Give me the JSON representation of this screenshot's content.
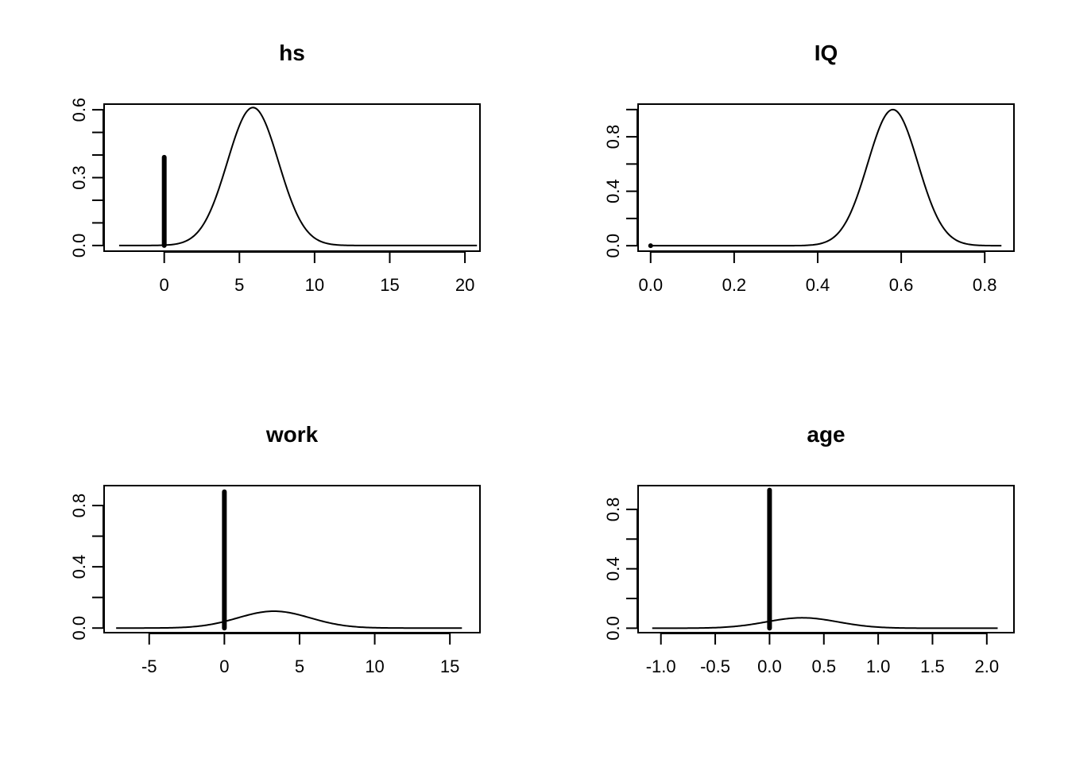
{
  "chart_data": [
    {
      "type": "line",
      "title": "hs",
      "xlabel": "",
      "ylabel": "",
      "xlim": [
        -4,
        21
      ],
      "ylim": [
        -0.025,
        0.625
      ],
      "xticks": [
        0,
        5,
        10,
        15,
        20
      ],
      "xtick_labels": [
        "0",
        "5",
        "10",
        "15",
        "20"
      ],
      "yticks": [
        0.0,
        0.3,
        0.6
      ],
      "ytick_labels": [
        "0.0",
        "0.3",
        "0.6"
      ],
      "yminor_ticks": [
        0.1,
        0.2,
        0.4,
        0.5
      ],
      "curve": {
        "kind": "normal_density",
        "mean": 5.9,
        "sd": 1.7,
        "peak": 0.61,
        "x_range": [
          -3,
          20.8
        ]
      },
      "spike": {
        "x": 0,
        "height": 0.39
      }
    },
    {
      "type": "line",
      "title": "IQ",
      "xlabel": "",
      "ylabel": "",
      "xlim": [
        -0.03,
        0.87
      ],
      "ylim": [
        -0.04,
        1.04
      ],
      "xticks": [
        0.0,
        0.2,
        0.4,
        0.6,
        0.8
      ],
      "xtick_labels": [
        "0.0",
        "0.2",
        "0.4",
        "0.6",
        "0.8"
      ],
      "yticks": [
        0.0,
        0.4,
        0.8
      ],
      "ytick_labels": [
        "0.0",
        "0.4",
        "0.8"
      ],
      "yminor_ticks": [
        0.2,
        0.6,
        1.0
      ],
      "curve": {
        "kind": "normal_density",
        "mean": 0.58,
        "sd": 0.06,
        "peak": 1.0,
        "x_range": [
          0.0,
          0.84
        ]
      },
      "spike": {
        "x": 0,
        "height": 0.0
      }
    },
    {
      "type": "line",
      "title": "work",
      "xlabel": "",
      "ylabel": "",
      "xlim": [
        -8,
        17
      ],
      "ylim": [
        -0.03,
        0.93
      ],
      "xticks": [
        -5,
        0,
        5,
        10,
        15
      ],
      "xtick_labels": [
        "-5",
        "0",
        "5",
        "10",
        "15"
      ],
      "yticks": [
        0.0,
        0.4,
        0.8
      ],
      "ytick_labels": [
        "0.0",
        "0.4",
        "0.8"
      ],
      "yminor_ticks": [
        0.2,
        0.6
      ],
      "curve": {
        "kind": "normal_density",
        "mean": 3.3,
        "sd": 2.4,
        "peak": 0.11,
        "x_range": [
          -7.2,
          15.8
        ]
      },
      "spike": {
        "x": 0,
        "height": 0.89
      }
    },
    {
      "type": "line",
      "title": "age",
      "xlabel": "",
      "ylabel": "",
      "xlim": [
        -1.21,
        2.25
      ],
      "ylim": [
        -0.03,
        0.96
      ],
      "xticks": [
        -1.0,
        -0.5,
        0.0,
        0.5,
        1.0,
        1.5,
        2.0
      ],
      "xtick_labels": [
        "-1.0",
        "-0.5",
        "0.0",
        "0.5",
        "1.0",
        "1.5",
        "2.0"
      ],
      "yticks": [
        0.0,
        0.4,
        0.8
      ],
      "ytick_labels": [
        "0.0",
        "0.4",
        "0.8"
      ],
      "yminor_ticks": [
        0.2,
        0.6
      ],
      "curve": {
        "kind": "normal_density",
        "mean": 0.3,
        "sd": 0.33,
        "peak": 0.07,
        "x_range": [
          -1.08,
          2.1
        ]
      },
      "spike": {
        "x": 0,
        "height": 0.93
      }
    }
  ]
}
